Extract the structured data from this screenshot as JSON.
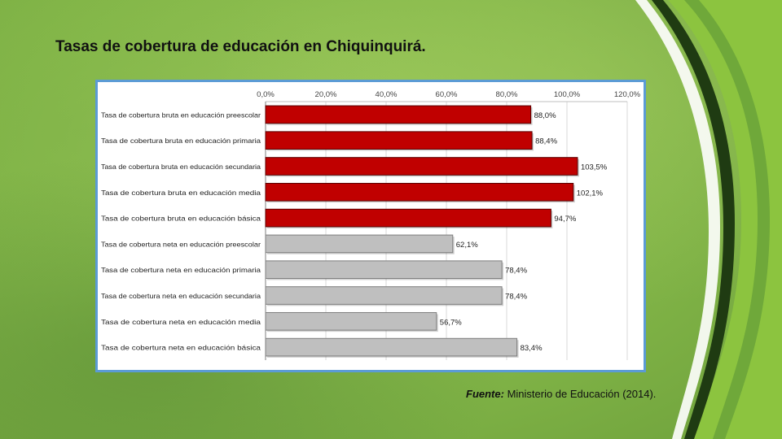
{
  "slide": {
    "title": "Tasas de cobertura de educación en Chiquinquirá.",
    "source_label": "Fuente:",
    "source_text": " Ministerio de Educación (2014)."
  },
  "colors": {
    "bruta": "#c00000",
    "neta": "#bfbfbf",
    "bruta_border": "#5a0000",
    "neta_border": "#7f7f7f",
    "frame": "#5b9bd5"
  },
  "chart_data": {
    "type": "bar",
    "orientation": "horizontal",
    "xlim": [
      0,
      120
    ],
    "ticks": [
      "0,0%",
      "20,0%",
      "40,0%",
      "60,0%",
      "80,0%",
      "100,0%",
      "120,0%"
    ],
    "tick_values": [
      0,
      20,
      40,
      60,
      80,
      100,
      120
    ],
    "gridlines": true,
    "axis_position": "top",
    "categories": [
      "Tasa de cobertura bruta en educación preescolar",
      "Tasa de cobertura bruta en educación primaria",
      "Tasa de cobertura bruta en educación secundaria",
      "Tasa de cobertura bruta en educación media",
      "Tasa de cobertura bruta en educación básica",
      "Tasa de cobertura neta en educación preescolar",
      "Tasa de cobertura neta en educación primaria",
      "Tasa de cobertura neta en educación secundaria",
      "Tasa de cobertura neta en educación media",
      "Tasa de cobertura neta en educación básica"
    ],
    "values": [
      88.0,
      88.4,
      103.5,
      102.1,
      94.7,
      62.1,
      78.4,
      78.4,
      56.7,
      83.4
    ],
    "value_labels": [
      "88,0%",
      "88,4%",
      "103,5%",
      "102,1%",
      "94,7%",
      "62,1%",
      "78,4%",
      "78,4%",
      "56,7%",
      "83,4%"
    ],
    "groups": [
      "bruta",
      "bruta",
      "bruta",
      "bruta",
      "bruta",
      "neta",
      "neta",
      "neta",
      "neta",
      "neta"
    ]
  }
}
